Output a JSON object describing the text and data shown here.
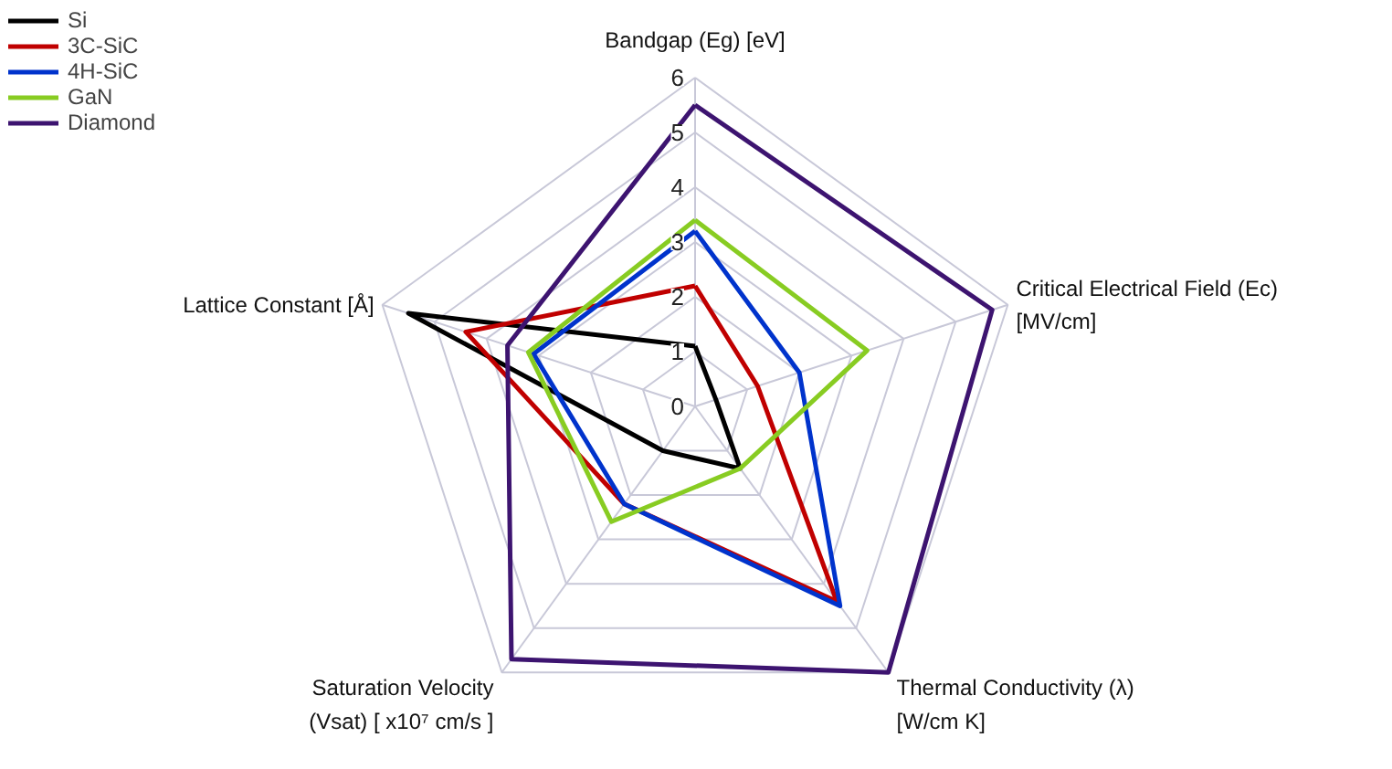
{
  "chart_data": {
    "type": "radar",
    "categories": [
      "Bandgap (Eg) [eV]",
      "Critical Electrical Field (Ec)\n[MV/cm]",
      "Thermal Conductivity (λ)\n[W/cm K]",
      "Saturation Velocity\n(Vsat) [ x10⁷ cm/s ]",
      "Lattice Constant [Å]"
    ],
    "series": [
      {
        "name": "Si",
        "color": "#000000",
        "values": [
          1.1,
          0.4,
          1.4,
          1.0,
          5.5
        ]
      },
      {
        "name": "3C-SiC",
        "color": "#c00000",
        "values": [
          2.2,
          1.2,
          4.4,
          2.2,
          4.4
        ]
      },
      {
        "name": "4H-SiC",
        "color": "#0033cc",
        "values": [
          3.2,
          2.0,
          4.5,
          2.2,
          3.1
        ]
      },
      {
        "name": "GaN",
        "color": "#88cc22",
        "values": [
          3.4,
          3.3,
          1.4,
          2.6,
          3.2
        ]
      },
      {
        "name": "Diamond",
        "color": "#3d1470",
        "values": [
          5.5,
          5.7,
          6.0,
          5.7,
          3.6
        ]
      }
    ],
    "ylim": [
      0,
      6
    ],
    "yticks": [
      0,
      1,
      2,
      3,
      4,
      5,
      6
    ],
    "grid": true,
    "legend": "top left"
  }
}
